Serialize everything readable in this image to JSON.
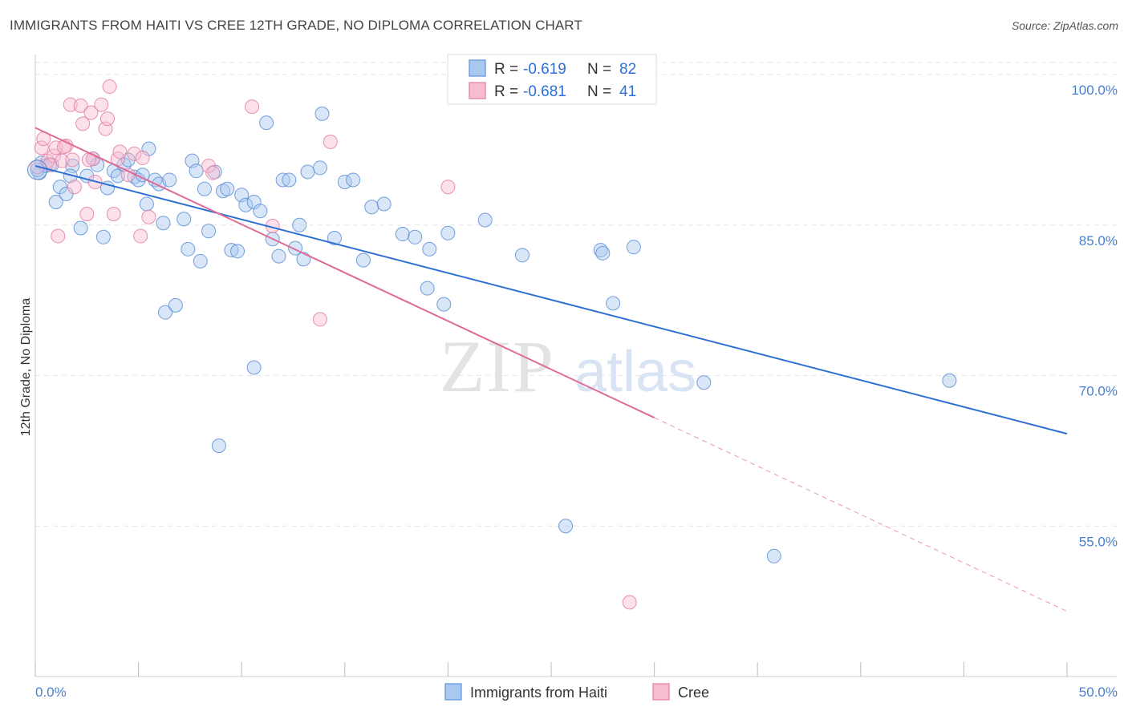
{
  "title": "IMMIGRANTS FROM HAITI VS CREE 12TH GRADE, NO DIPLOMA CORRELATION CHART",
  "source": "Source: ZipAtlas.com",
  "chart_data": {
    "type": "scatter",
    "ylabel": "12th Grade, No Diploma",
    "xlim": [
      0,
      50
    ],
    "ylim": [
      40,
      102
    ],
    "x_tick_labels": [
      "0.0%",
      "50.0%"
    ],
    "y_ticks": [
      55,
      70,
      85,
      100
    ],
    "y_tick_labels": [
      "55.0%",
      "70.0%",
      "85.0%",
      "100.0%"
    ],
    "grid": true,
    "watermark": {
      "zip": "ZIP",
      "atlas": "atlas"
    },
    "legend": {
      "r_label": "R = ",
      "n_label": "N = ",
      "entries": [
        {
          "r": "-0.619",
          "n": "82",
          "color": "#a8c8f0",
          "edge": "#5b93d8"
        },
        {
          "r": "-0.681",
          "n": "41",
          "color": "#f8bcd0",
          "edge": "#e07fa0"
        }
      ]
    },
    "series": [
      {
        "name": "Immigrants from Haiti",
        "color": "#aac8f0",
        "edge": "#5a8fd5",
        "trend": {
          "x0": 0.0,
          "y0": 90.9,
          "x1": 50.0,
          "y1": 64.2,
          "color": "#2b6fd1"
        },
        "points": [
          [
            0.2,
            90.2
          ],
          [
            0.3,
            91.2
          ],
          [
            0.5,
            90.9
          ],
          [
            0.8,
            91.0
          ],
          [
            1.0,
            87.3
          ],
          [
            1.2,
            88.8
          ],
          [
            1.5,
            88.1
          ],
          [
            1.8,
            90.9
          ],
          [
            2.2,
            84.7
          ],
          [
            2.5,
            89.9
          ],
          [
            2.8,
            91.6
          ],
          [
            3.0,
            91.0
          ],
          [
            3.3,
            83.8
          ],
          [
            3.5,
            88.7
          ],
          [
            3.8,
            90.4
          ],
          [
            4.0,
            89.9
          ],
          [
            4.3,
            91.0
          ],
          [
            4.5,
            91.5
          ],
          [
            4.8,
            89.8
          ],
          [
            5.0,
            89.5
          ],
          [
            5.2,
            90.0
          ],
          [
            5.4,
            87.1
          ],
          [
            5.5,
            92.6
          ],
          [
            5.8,
            89.5
          ],
          [
            6.0,
            89.1
          ],
          [
            6.2,
            85.2
          ],
          [
            6.5,
            89.5
          ],
          [
            6.3,
            76.3
          ],
          [
            6.8,
            77.0
          ],
          [
            7.2,
            85.6
          ],
          [
            7.4,
            82.6
          ],
          [
            7.6,
            91.4
          ],
          [
            7.8,
            90.4
          ],
          [
            8.0,
            81.4
          ],
          [
            8.2,
            88.6
          ],
          [
            8.4,
            84.4
          ],
          [
            8.7,
            90.3
          ],
          [
            8.9,
            63.0
          ],
          [
            9.1,
            88.4
          ],
          [
            9.3,
            88.6
          ],
          [
            9.5,
            82.5
          ],
          [
            9.8,
            82.4
          ],
          [
            10.0,
            88.0
          ],
          [
            10.2,
            87.0
          ],
          [
            10.6,
            87.3
          ],
          [
            10.9,
            86.4
          ],
          [
            10.6,
            70.8
          ],
          [
            11.2,
            95.2
          ],
          [
            11.5,
            83.6
          ],
          [
            11.8,
            81.9
          ],
          [
            12.0,
            89.5
          ],
          [
            12.3,
            89.5
          ],
          [
            12.6,
            82.7
          ],
          [
            12.8,
            85.0
          ],
          [
            13.0,
            81.6
          ],
          [
            13.2,
            90.3
          ],
          [
            13.8,
            90.7
          ],
          [
            13.9,
            96.1
          ],
          [
            14.5,
            83.7
          ],
          [
            15.0,
            89.3
          ],
          [
            15.4,
            89.5
          ],
          [
            15.9,
            81.5
          ],
          [
            16.3,
            86.8
          ],
          [
            16.9,
            87.1
          ],
          [
            17.8,
            84.1
          ],
          [
            18.4,
            83.8
          ],
          [
            19.1,
            82.6
          ],
          [
            19.0,
            78.7
          ],
          [
            19.8,
            77.1
          ],
          [
            20.0,
            84.2
          ],
          [
            21.8,
            85.5
          ],
          [
            23.6,
            82.0
          ],
          [
            25.7,
            55.0
          ],
          [
            27.4,
            82.5
          ],
          [
            27.5,
            82.2
          ],
          [
            28.0,
            77.2
          ],
          [
            29.0,
            82.8
          ],
          [
            32.4,
            69.3
          ],
          [
            35.8,
            52.0
          ],
          [
            44.3,
            69.5
          ],
          [
            0.1,
            90.5
          ],
          [
            1.7,
            89.9
          ]
        ]
      },
      {
        "name": "Cree",
        "color": "#f8bcd0",
        "edge": "#e27ea3",
        "trend": {
          "x0": 0.0,
          "y0": 94.7,
          "x1": 30.0,
          "y1": 65.8,
          "dash_x1": 50.0,
          "dash_y1": 46.5,
          "color": "#e06a96"
        },
        "points": [
          [
            0.1,
            90.8
          ],
          [
            0.3,
            92.7
          ],
          [
            0.4,
            93.6
          ],
          [
            0.6,
            91.4
          ],
          [
            0.9,
            91.9
          ],
          [
            1.0,
            92.7
          ],
          [
            1.1,
            83.9
          ],
          [
            1.3,
            91.4
          ],
          [
            1.5,
            92.9
          ],
          [
            1.7,
            97.0
          ],
          [
            1.8,
            91.5
          ],
          [
            1.9,
            88.8
          ],
          [
            2.2,
            96.9
          ],
          [
            2.3,
            95.1
          ],
          [
            2.5,
            86.1
          ],
          [
            2.7,
            96.2
          ],
          [
            2.8,
            91.6
          ],
          [
            2.9,
            89.3
          ],
          [
            3.2,
            97.0
          ],
          [
            3.4,
            94.6
          ],
          [
            3.5,
            95.6
          ],
          [
            3.6,
            98.8
          ],
          [
            3.8,
            86.1
          ],
          [
            4.0,
            91.6
          ],
          [
            4.1,
            92.3
          ],
          [
            4.5,
            90.0
          ],
          [
            4.8,
            92.1
          ],
          [
            5.1,
            83.9
          ],
          [
            5.2,
            91.7
          ],
          [
            5.5,
            85.8
          ],
          [
            8.4,
            90.9
          ],
          [
            8.6,
            90.2
          ],
          [
            10.5,
            96.8
          ],
          [
            11.5,
            84.9
          ],
          [
            13.8,
            75.6
          ],
          [
            14.3,
            93.3
          ],
          [
            20.0,
            88.8
          ],
          [
            28.8,
            47.4
          ],
          [
            1.4,
            92.8
          ],
          [
            0.7,
            91.0
          ],
          [
            2.6,
            91.5
          ]
        ]
      }
    ]
  }
}
